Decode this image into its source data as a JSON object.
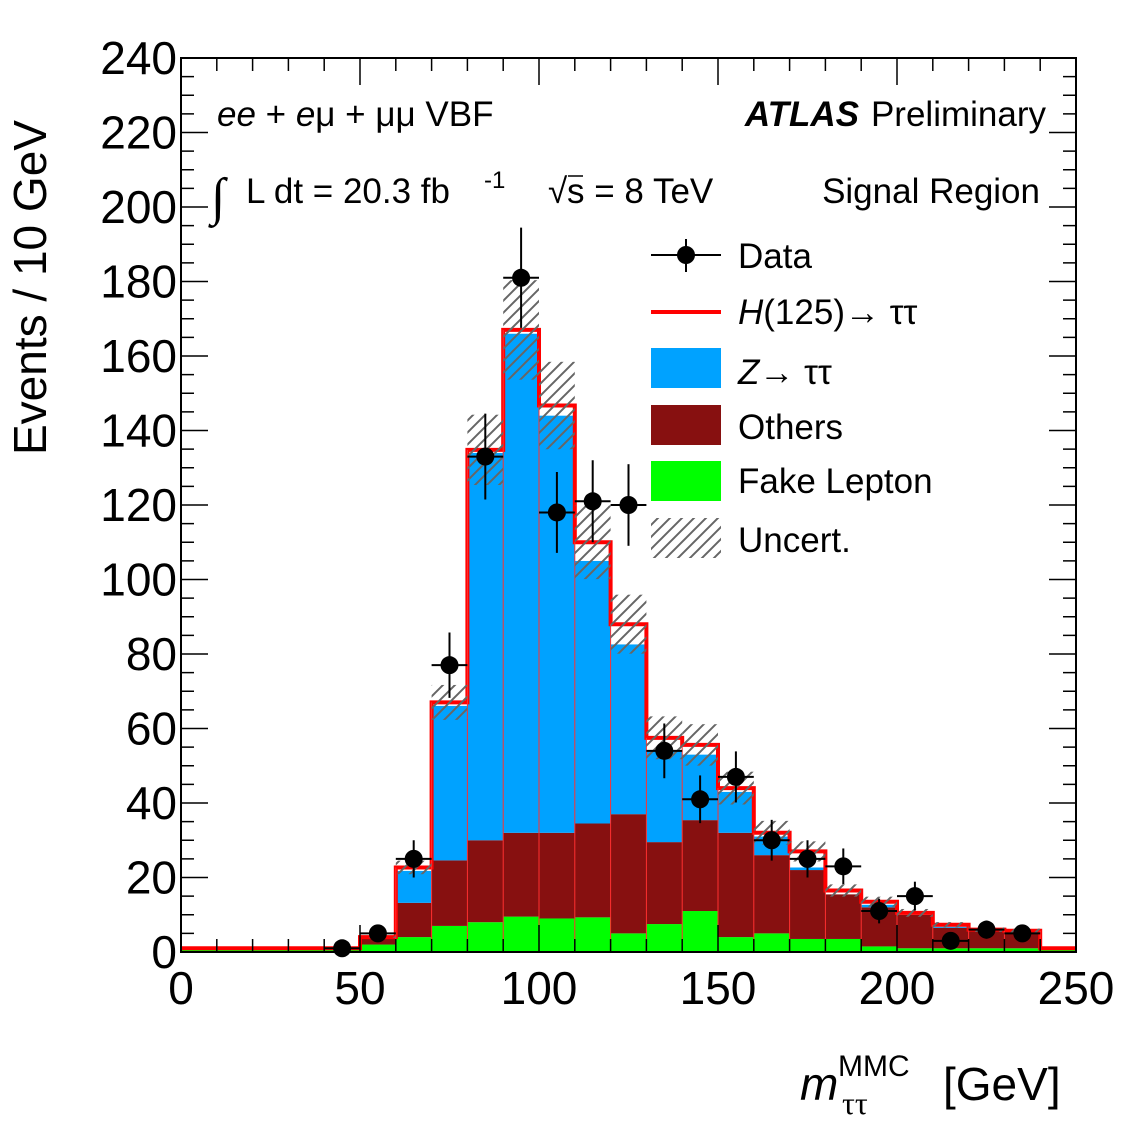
{
  "chart_data": {
    "type": "bar",
    "subtype": "stacked-histogram",
    "title": "",
    "xlabel": "m_ττ^MMC [GeV]",
    "xlabel_parts": {
      "main": "m",
      "sub": "ττ",
      "sup": "MMC",
      "unit": "[GeV]"
    },
    "ylabel": "Events / 10 GeV",
    "xlim": [
      0,
      250
    ],
    "ylim": [
      0,
      240
    ],
    "x_ticks": [
      0,
      50,
      100,
      150,
      200,
      250
    ],
    "y_ticks": [
      0,
      20,
      40,
      60,
      80,
      100,
      120,
      140,
      160,
      180,
      200,
      220,
      240
    ],
    "bin_width": 10,
    "bin_edges": [
      0,
      10,
      20,
      30,
      40,
      50,
      60,
      70,
      80,
      90,
      100,
      110,
      120,
      130,
      140,
      150,
      160,
      170,
      180,
      190,
      200,
      210,
      220,
      230,
      240,
      250
    ],
    "series": [
      {
        "name": "Fake Lepton",
        "color": "#00ff00",
        "values": [
          1,
          1,
          1,
          1,
          1,
          2,
          4,
          7,
          8,
          9.5,
          9,
          9.3,
          5,
          7.5,
          11,
          4,
          5,
          3.5,
          3.5,
          1.5,
          1,
          1,
          1,
          1,
          1
        ]
      },
      {
        "name": "Others",
        "color": "#871010",
        "values": [
          0,
          0,
          0,
          0,
          0,
          1.5,
          9.2,
          17.6,
          22,
          22.5,
          23,
          25.2,
          32,
          22,
          24.4,
          28,
          21,
          18.5,
          12,
          10.5,
          9,
          5.5,
          4.5,
          4,
          0
        ]
      },
      {
        "name": "Z→ττ",
        "color": "#00a2ff",
        "values": [
          0,
          0,
          0,
          0,
          0,
          0.3,
          8.6,
          41.5,
          104,
          134,
          112,
          70.5,
          45.6,
          24.5,
          17.6,
          11,
          5,
          0.7,
          -0.5,
          0.7,
          -1,
          0.3,
          0,
          0,
          0
        ]
      },
      {
        "name": "H(125)→ττ",
        "color": "#ff0000",
        "type": "line-on-top",
        "values": [
          0,
          0,
          0,
          0,
          0,
          0.2,
          0.9,
          0.9,
          0.8,
          1,
          2.7,
          5,
          5.4,
          3.5,
          2.6,
          1,
          1,
          4.3,
          1.5,
          0.8,
          1.5,
          0.5,
          0.5,
          0.7,
          0
        ]
      }
    ],
    "total_prediction": [
      1,
      1,
      1,
      1,
      1,
      4,
      22.7,
      67,
      134.8,
      167,
      146.7,
      110,
      88,
      57.5,
      55.6,
      44,
      32,
      27,
      16.5,
      13.5,
      10.5,
      7.3,
      6,
      5.7,
      1
    ],
    "uncertainty_band": {
      "name": "Uncert.",
      "style": "hatched",
      "color": "#555555",
      "rel_half_width": [
        0,
        0,
        0,
        0,
        0,
        0.05,
        0.08,
        0.07,
        0.07,
        0.08,
        0.08,
        0.09,
        0.09,
        0.1,
        0.1,
        0.1,
        0.1,
        0.1,
        0.1,
        0.1,
        0.1,
        0.1,
        0.1,
        0.1,
        0
      ]
    },
    "data_points": {
      "name": "Data",
      "color": "#000000",
      "x": [
        45,
        55,
        65,
        75,
        85,
        95,
        105,
        115,
        125,
        135,
        145,
        155,
        165,
        175,
        185,
        195,
        205,
        215,
        225,
        235
      ],
      "y": [
        1,
        5,
        25,
        77,
        133,
        181,
        118,
        121,
        120,
        54,
        41,
        47,
        30,
        25,
        23,
        11,
        15,
        3,
        6,
        5
      ]
    },
    "legend": {
      "placement": "top-right",
      "entries": [
        {
          "label": "Data",
          "kind": "marker"
        },
        {
          "label_italic": "H",
          "label_rest": "(125)→ ττ",
          "kind": "line",
          "color": "#ff0000"
        },
        {
          "label_italic": "Z",
          "label_rest": "→ ττ",
          "kind": "fill",
          "color": "#00a2ff"
        },
        {
          "label": "Others",
          "kind": "fill",
          "color": "#871010"
        },
        {
          "label": "Fake Lepton",
          "kind": "fill",
          "color": "#00ff00"
        },
        {
          "label": "Uncert.",
          "kind": "hatch",
          "color": "#555555"
        }
      ]
    },
    "annotations": {
      "channel_italic_1": "ee",
      "channel_rest_1": " + ",
      "channel_italic_2": "e",
      "channel_rest_2": "μ + μμ VBF",
      "experiment_bold": "ATLAS",
      "experiment_status": "Preliminary",
      "lumi_prefix": "∫",
      "lumi_text": "L dt = 20.3 fb",
      "lumi_sup": "-1",
      "energy_root": "√",
      "energy_text": "s = 8 TeV",
      "region": "Signal Region"
    },
    "grid": false
  }
}
